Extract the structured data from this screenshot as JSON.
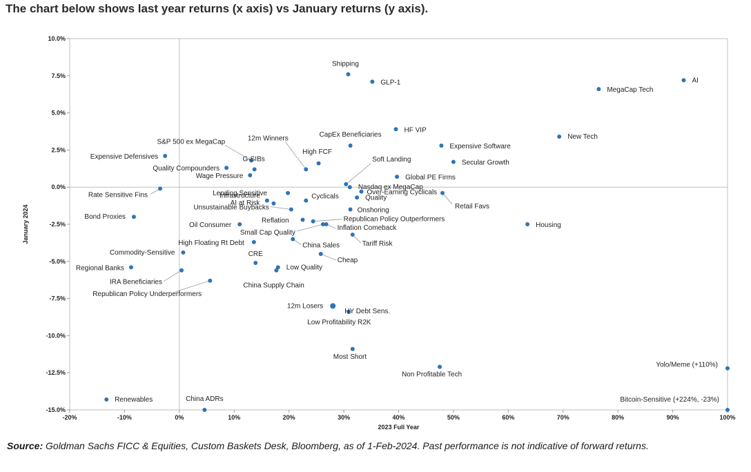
{
  "headline": "The chart below shows last year returns (x axis) vs January returns (y axis).",
  "footer": {
    "source_label": "Source:",
    "source_text": " Goldman Sachs FICC & Equities, Custom Baskets Desk, Bloomberg, as of 1-Feb-2024. Past performance is not indicative of forward returns."
  },
  "chart_data": {
    "type": "scatter",
    "title": "",
    "xlabel": "2023 Full Year",
    "ylabel": "January 2024",
    "xlim": [
      -20,
      100
    ],
    "ylim": [
      -15,
      10
    ],
    "x_ticks": [
      -20,
      -10,
      0,
      10,
      20,
      30,
      40,
      50,
      60,
      70,
      80,
      90,
      100
    ],
    "x_tick_labels": [
      "-20%",
      "-10%",
      "0%",
      "10%",
      "20%",
      "30%",
      "40%",
      "50%",
      "60%",
      "70%",
      "80%",
      "90%",
      "100%"
    ],
    "y_ticks": [
      -15,
      -12.5,
      -10,
      -7.5,
      -5,
      -2.5,
      0,
      2.5,
      5,
      7.5,
      10
    ],
    "y_tick_labels": [
      "-15.0%",
      "-12.5%",
      "-10.0%",
      "-7.5%",
      "-5.0%",
      "-2.5%",
      "0.0%",
      "2.5%",
      "5.0%",
      "7.5%",
      "10.0%"
    ],
    "grid": false,
    "point_color": "#2e75b6",
    "points": [
      {
        "name": "Shipping",
        "x": 30.8,
        "y": 7.6
      },
      {
        "name": "GLP-1",
        "x": 35.2,
        "y": 7.1
      },
      {
        "name": "AI",
        "x": 92.0,
        "y": 7.2
      },
      {
        "name": "MegaCap Tech",
        "x": 76.5,
        "y": 6.6
      },
      {
        "name": "HF VIP",
        "x": 39.5,
        "y": 3.9
      },
      {
        "name": "New Tech",
        "x": 69.3,
        "y": 3.4
      },
      {
        "name": "CapEx Beneficiaries",
        "x": 31.2,
        "y": 2.8
      },
      {
        "name": "Expensive Software",
        "x": 47.8,
        "y": 2.8
      },
      {
        "name": "Secular Growth",
        "x": 50.0,
        "y": 1.7
      },
      {
        "name": "12m Winners",
        "x": 23.1,
        "y": 1.2
      },
      {
        "name": "High FCF",
        "x": 25.4,
        "y": 1.6
      },
      {
        "name": "S&P 500 ex MegaCap",
        "x": 13.1,
        "y": 1.8
      },
      {
        "name": "G-SIBs",
        "x": 13.7,
        "y": 1.2
      },
      {
        "name": "Expensive Defensives",
        "x": -2.6,
        "y": 2.1
      },
      {
        "name": "Quality Compounders",
        "x": 8.6,
        "y": 1.3
      },
      {
        "name": "Wage Pressure",
        "x": 12.9,
        "y": 0.8
      },
      {
        "name": "Soft Landing",
        "x": 30.4,
        "y": 0.2
      },
      {
        "name": "Global PE Firms",
        "x": 39.7,
        "y": 0.7
      },
      {
        "name": "Nasdaq ex MegaCap",
        "x": 31.1,
        "y": 0.0
      },
      {
        "name": "Rate Sensitive Fins",
        "x": -3.5,
        "y": -0.1
      },
      {
        "name": "Lending Sensitive",
        "x": 19.8,
        "y": -0.4
      },
      {
        "name": "Over-Earning Cyclicals",
        "x": 33.2,
        "y": -0.3
      },
      {
        "name": "Infrastructure",
        "x": 16.0,
        "y": -0.9
      },
      {
        "name": "Cyclicals",
        "x": 23.1,
        "y": -0.9
      },
      {
        "name": "Retail Favs",
        "x": 48.0,
        "y": -0.4
      },
      {
        "name": "Quality",
        "x": 32.4,
        "y": -0.7
      },
      {
        "name": "AI at Risk",
        "x": 17.2,
        "y": -1.1
      },
      {
        "name": "Unsustainable Buybacks",
        "x": 20.4,
        "y": -1.5
      },
      {
        "name": "Onshoring",
        "x": 31.2,
        "y": -1.5
      },
      {
        "name": "Bond Proxies",
        "x": -8.3,
        "y": -2.0
      },
      {
        "name": "Reflation",
        "x": 22.5,
        "y": -2.2
      },
      {
        "name": "Republican Policy Outperformers",
        "x": 24.4,
        "y": -2.3
      },
      {
        "name": "Oil Consumer",
        "x": 11.0,
        "y": -2.5
      },
      {
        "name": "Small Cap Quality",
        "x": 26.2,
        "y": -2.5
      },
      {
        "name": "Inflation Comeback",
        "x": 26.8,
        "y": -2.5
      },
      {
        "name": "Housing",
        "x": 63.5,
        "y": -2.5
      },
      {
        "name": "Tariff Risk",
        "x": 31.6,
        "y": -3.2
      },
      {
        "name": "High Floating Rt Debt",
        "x": 13.6,
        "y": -3.7
      },
      {
        "name": "China Sales",
        "x": 20.7,
        "y": -3.5
      },
      {
        "name": "Commodity-Sensitive",
        "x": 0.7,
        "y": -4.4
      },
      {
        "name": "Cheap",
        "x": 25.8,
        "y": -4.5
      },
      {
        "name": "CRE",
        "x": 13.9,
        "y": -5.1
      },
      {
        "name": "Regional Banks",
        "x": -8.8,
        "y": -5.4
      },
      {
        "name": "Low Quality",
        "x": 18.0,
        "y": -5.4
      },
      {
        "name": "China Supply Chain",
        "x": 17.7,
        "y": -5.6
      },
      {
        "name": "IRA Beneficiaries",
        "x": 0.4,
        "y": -5.6
      },
      {
        "name": "Republican Policy Underperformers",
        "x": 5.6,
        "y": -6.3
      },
      {
        "name": "12m Losers",
        "x": 28.0,
        "y": -8.0
      },
      {
        "name": "HY Debt Sens.",
        "x": 30.9,
        "y": -8.4
      },
      {
        "name": "Low Profitability R2K",
        "x": 30.9,
        "y": -8.4
      },
      {
        "name": "Most Short",
        "x": 31.6,
        "y": -10.9
      },
      {
        "name": "Non Profitable Tech",
        "x": 47.5,
        "y": -12.1
      },
      {
        "name": "Yolo/Meme (+110%)",
        "x": 100.0,
        "y": -12.2
      },
      {
        "name": "Renewables",
        "x": -13.3,
        "y": -14.3
      },
      {
        "name": "China ADRs",
        "x": 4.6,
        "y": -15.0
      },
      {
        "name": "Bitcoin-Sensitive (+224%, -23%)",
        "x": 100.0,
        "y": -15.0
      }
    ]
  }
}
